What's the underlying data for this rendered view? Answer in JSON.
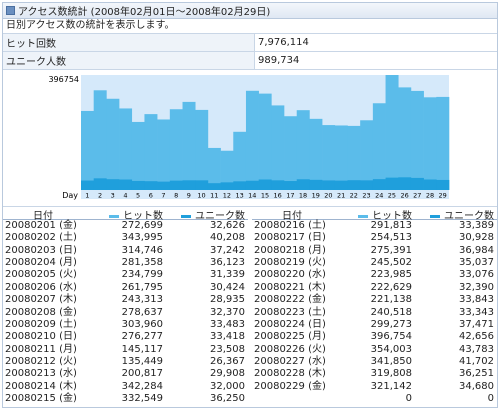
{
  "title": "アクセス数統計 (2008年02月01日～2008年02月29日)",
  "description": "日別アクセス数の統計を表示します。",
  "summary": [
    {
      "label": "ヒット回数",
      "value": "7,976,114"
    },
    {
      "label": "ユニーク人数",
      "value": "989,734"
    }
  ],
  "colors": {
    "hits": "#5bbcea",
    "unique": "#1f9fdc",
    "bg": "#d5e9fa"
  },
  "chart_data": {
    "type": "bar",
    "ymax_label": "396754",
    "x_axis_title": "Day",
    "categories": [
      "1",
      "2",
      "3",
      "4",
      "5",
      "6",
      "7",
      "8",
      "9",
      "10",
      "11",
      "12",
      "13",
      "14",
      "15",
      "16",
      "17",
      "18",
      "19",
      "20",
      "21",
      "22",
      "23",
      "24",
      "25",
      "26",
      "27",
      "28",
      "29"
    ],
    "series": [
      {
        "name": "ヒット数",
        "values": [
          272699,
          343995,
          314746,
          281358,
          234799,
          261795,
          243313,
          278637,
          303960,
          276277,
          145117,
          135449,
          200817,
          342284,
          332549,
          291813,
          254513,
          275391,
          245502,
          223985,
          222629,
          221138,
          240518,
          299273,
          396754,
          354003,
          341850,
          319808,
          321142
        ]
      },
      {
        "name": "ユニーク数",
        "values": [
          32626,
          40208,
          37242,
          36123,
          31339,
          30424,
          28935,
          32370,
          33483,
          33418,
          23508,
          26367,
          29908,
          32000,
          36250,
          33389,
          30928,
          36984,
          35037,
          33076,
          32390,
          33843,
          33343,
          37471,
          42656,
          43783,
          41702,
          36251,
          34680
        ]
      }
    ],
    "ylim": [
      0,
      396754
    ]
  },
  "daily": {
    "headers": {
      "date": "日付",
      "hits": "ヒット数",
      "unique": "ユニーク数"
    },
    "left": [
      {
        "date": "20080201 (金)",
        "hits": "272,699",
        "unique": "32,626"
      },
      {
        "date": "20080202 (土)",
        "hits": "343,995",
        "unique": "40,208"
      },
      {
        "date": "20080203 (日)",
        "hits": "314,746",
        "unique": "37,242"
      },
      {
        "date": "20080204 (月)",
        "hits": "281,358",
        "unique": "36,123"
      },
      {
        "date": "20080205 (火)",
        "hits": "234,799",
        "unique": "31,339"
      },
      {
        "date": "20080206 (水)",
        "hits": "261,795",
        "unique": "30,424"
      },
      {
        "date": "20080207 (木)",
        "hits": "243,313",
        "unique": "28,935"
      },
      {
        "date": "20080208 (金)",
        "hits": "278,637",
        "unique": "32,370"
      },
      {
        "date": "20080209 (土)",
        "hits": "303,960",
        "unique": "33,483"
      },
      {
        "date": "20080210 (日)",
        "hits": "276,277",
        "unique": "33,418"
      },
      {
        "date": "20080211 (月)",
        "hits": "145,117",
        "unique": "23,508"
      },
      {
        "date": "20080212 (火)",
        "hits": "135,449",
        "unique": "26,367"
      },
      {
        "date": "20080213 (水)",
        "hits": "200,817",
        "unique": "29,908"
      },
      {
        "date": "20080214 (木)",
        "hits": "342,284",
        "unique": "32,000"
      },
      {
        "date": "20080215 (金)",
        "hits": "332,549",
        "unique": "36,250"
      }
    ],
    "right": [
      {
        "date": "20080216 (土)",
        "hits": "291,813",
        "unique": "33,389"
      },
      {
        "date": "20080217 (日)",
        "hits": "254,513",
        "unique": "30,928"
      },
      {
        "date": "20080218 (月)",
        "hits": "275,391",
        "unique": "36,984"
      },
      {
        "date": "20080219 (火)",
        "hits": "245,502",
        "unique": "35,037"
      },
      {
        "date": "20080220 (水)",
        "hits": "223,985",
        "unique": "33,076"
      },
      {
        "date": "20080221 (木)",
        "hits": "222,629",
        "unique": "32,390"
      },
      {
        "date": "20080222 (金)",
        "hits": "221,138",
        "unique": "33,843"
      },
      {
        "date": "20080223 (土)",
        "hits": "240,518",
        "unique": "33,343"
      },
      {
        "date": "20080224 (日)",
        "hits": "299,273",
        "unique": "37,471"
      },
      {
        "date": "20080225 (月)",
        "hits": "396,754",
        "unique": "42,656"
      },
      {
        "date": "20080226 (火)",
        "hits": "354,003",
        "unique": "43,783"
      },
      {
        "date": "20080227 (水)",
        "hits": "341,850",
        "unique": "41,702"
      },
      {
        "date": "20080228 (木)",
        "hits": "319,808",
        "unique": "36,251"
      },
      {
        "date": "20080229 (金)",
        "hits": "321,142",
        "unique": "34,680"
      },
      {
        "date": "",
        "hits": "0",
        "unique": "0"
      }
    ]
  }
}
